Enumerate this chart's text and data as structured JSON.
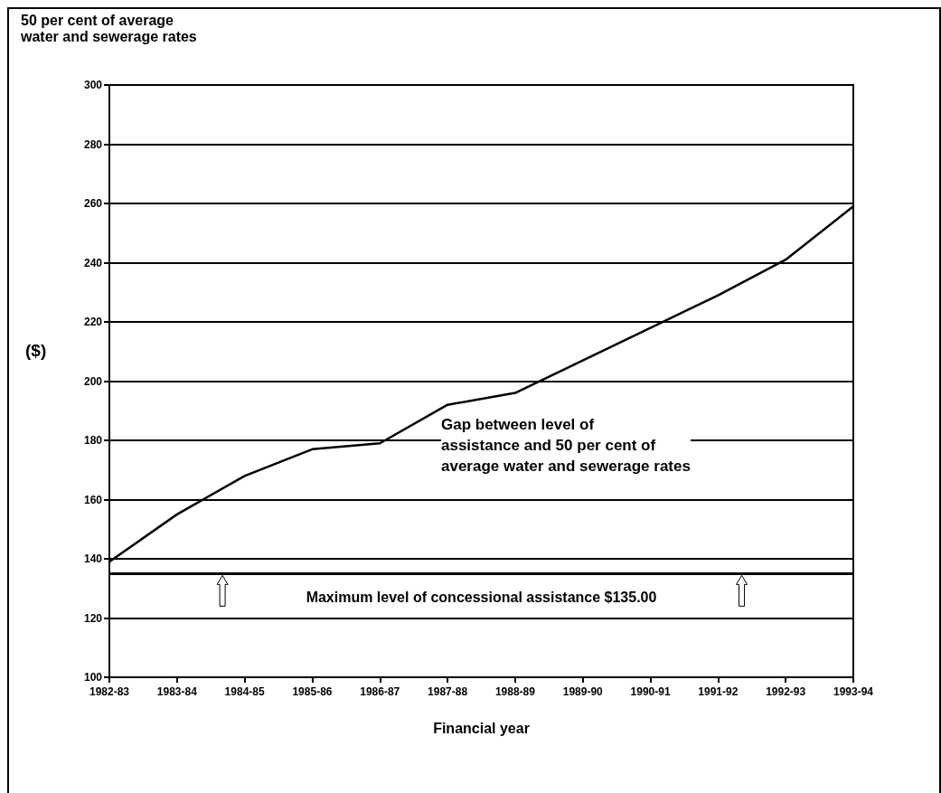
{
  "chart_data": {
    "type": "line",
    "title": "50 per cent of average water and sewerage rates",
    "ylabel": "($)",
    "xlabel": "Financial year",
    "categories": [
      "1982-83",
      "1983-84",
      "1984-85",
      "1985-86",
      "1986-87",
      "1987-88",
      "1988-89",
      "1989-90",
      "1990-91",
      "1991-92",
      "1992-93",
      "1993-94"
    ],
    "series": [
      {
        "color": "#000000",
        "values": [
          139,
          155,
          168,
          177,
          179,
          192,
          196,
          207,
          218,
          229,
          241,
          259
        ]
      }
    ],
    "ylim": [
      100,
      300
    ],
    "yticks": [
      100,
      120,
      140,
      160,
      180,
      200,
      220,
      240,
      260,
      280,
      300
    ],
    "grid": "y",
    "marker": "none",
    "line_style": "solid",
    "ref_lines": [
      {
        "axis": "y",
        "value": 135,
        "label": "Maximum level of concessional assistance $135.00",
        "color": "#000000"
      }
    ],
    "annotations": [
      "Gap between level of\nassistance and 50 per cent of\naverage water and sewerage rates"
    ]
  }
}
